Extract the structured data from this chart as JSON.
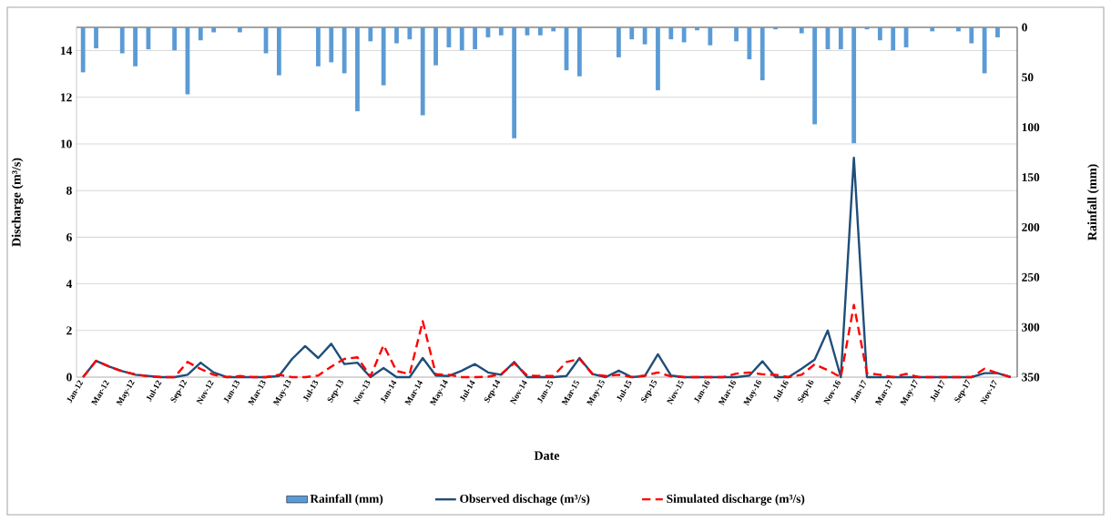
{
  "chart_data": {
    "type": "line",
    "xlabel": "Date",
    "ylabel": "Discharge (m³/s)",
    "y2label": "Rainfall (mm)",
    "categories": [
      "Jan-12",
      null,
      "Mar-12",
      null,
      "May-12",
      null,
      "Jul-12",
      null,
      "Sep-12",
      null,
      "Nov-12",
      null,
      "Jan-13",
      null,
      "Mar-13",
      null,
      "May-13",
      null,
      "Jul-13",
      null,
      "Sep-13",
      null,
      "Nov-13",
      null,
      "Jan-14",
      null,
      "Mar-14",
      null,
      "May-14",
      null,
      "Jul-14",
      null,
      "Sep-14",
      null,
      "Nov-14",
      null,
      "Jan-15",
      null,
      "Mar-15",
      null,
      "May-15",
      null,
      "Jul-15",
      null,
      "Sep-15",
      null,
      "Nov-15",
      null,
      "Jan-16",
      null,
      "Mar-16",
      null,
      "May-16",
      null,
      "Jul-16",
      null,
      "Sep-16",
      null,
      "Nov-16",
      null,
      "Jan-17",
      null,
      "Mar-17",
      null,
      "May-17",
      null,
      "Jul-17",
      null,
      "Sep-17",
      null,
      "Nov-17",
      null
    ],
    "series": [
      {
        "name": "Rainfall (mm)",
        "type": "bar",
        "axis": "y2",
        "color": "#5b9bd5",
        "values": [
          45,
          21,
          0,
          26,
          39,
          22,
          0,
          23,
          67,
          13,
          5,
          0,
          5,
          0,
          26,
          48,
          0,
          0,
          39,
          35,
          46,
          84,
          14,
          58,
          16,
          12,
          88,
          38,
          20,
          23,
          22,
          10,
          8,
          111,
          8,
          8,
          4,
          43,
          49,
          0,
          0,
          30,
          12,
          17,
          63,
          12,
          15,
          3,
          18,
          0,
          14,
          32,
          53,
          2,
          0,
          6,
          97,
          22,
          22,
          116,
          2,
          13,
          23,
          20,
          0,
          4,
          0,
          4,
          16,
          46,
          10,
          0
        ]
      },
      {
        "name": "Observed dischage (m³/s)",
        "color": "#1f4e79",
        "values": [
          0,
          0.7,
          0.45,
          0.26,
          0.1,
          0.05,
          0,
          0,
          0.1,
          0.62,
          0.2,
          0,
          0,
          0,
          0,
          0.05,
          0.78,
          1.33,
          0.82,
          1.43,
          0.56,
          0.62,
          0,
          0.39,
          0,
          0,
          0.82,
          0.07,
          0.05,
          0.28,
          0.56,
          0.2,
          0.1,
          0.65,
          0,
          0,
          0,
          0.05,
          0.82,
          0.13,
          0,
          0.28,
          0,
          0.05,
          0.98,
          0.07,
          0,
          0,
          0,
          0,
          0,
          0.07,
          0.68,
          0,
          0,
          0.36,
          0.75,
          2.0,
          0,
          9.41,
          0,
          0,
          0,
          0,
          0,
          0,
          0,
          0,
          0,
          0.17,
          0.17,
          0
        ]
      },
      {
        "name": "Simulated discharge (m³/s)",
        "line_style": "dashed",
        "color": "#ff0000",
        "values": [
          0,
          0.7,
          0.45,
          0.25,
          0.12,
          0.03,
          0,
          0,
          0.65,
          0.35,
          0.1,
          0,
          0.05,
          0,
          0,
          0.1,
          0,
          0,
          0.07,
          0.45,
          0.78,
          0.85,
          0.03,
          1.37,
          0.26,
          0.13,
          2.4,
          0.13,
          0.1,
          0,
          0,
          0.02,
          0.13,
          0.6,
          0.07,
          0.05,
          0.05,
          0.65,
          0.78,
          0.13,
          0.05,
          0.1,
          0,
          0.07,
          0.2,
          0.03,
          0,
          0,
          0,
          0,
          0.15,
          0.2,
          0.12,
          0.1,
          0,
          0.1,
          0.55,
          0.3,
          0,
          3.1,
          0.17,
          0.1,
          0,
          0.14,
          0,
          0,
          0,
          0,
          0,
          0.36,
          0.17,
          0
        ]
      }
    ],
    "ylim": [
      0,
      15
    ],
    "yticks": [
      0,
      2,
      4,
      6,
      8,
      10,
      12,
      14
    ],
    "y2lim": [
      350,
      0
    ],
    "y2ticks": [
      0,
      50,
      100,
      150,
      200,
      250,
      300,
      350
    ],
    "grid": "y",
    "legend": "bottom"
  }
}
